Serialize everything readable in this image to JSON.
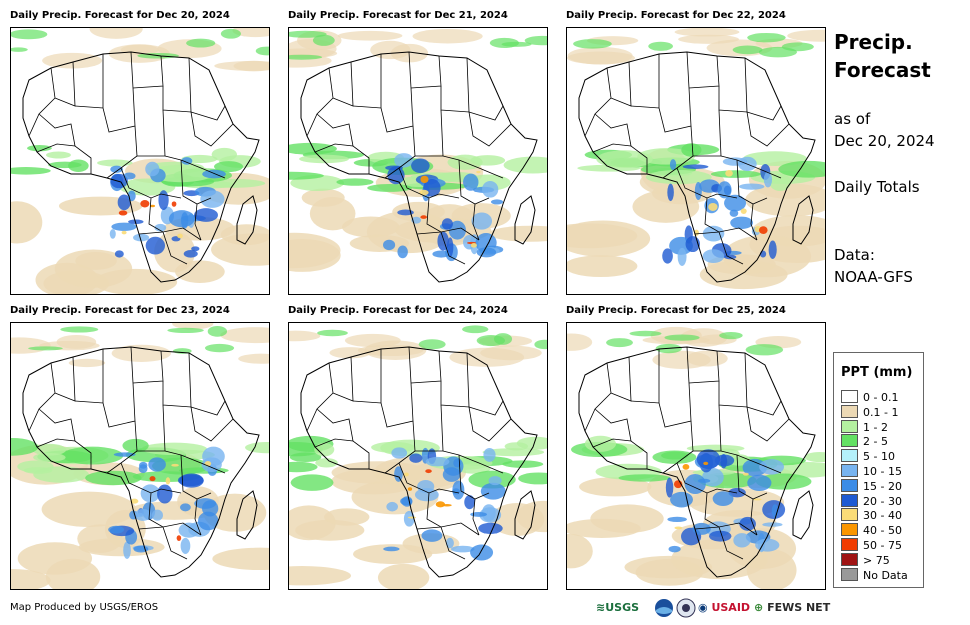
{
  "panels": [
    {
      "title": "Daily Precip. Forecast for Dec 20, 2024"
    },
    {
      "title": "Daily Precip. Forecast for Dec 21, 2024"
    },
    {
      "title": "Daily Precip. Forecast for Dec 22, 2024"
    },
    {
      "title": "Daily Precip. Forecast for Dec 23, 2024"
    },
    {
      "title": "Daily Precip. Forecast for Dec 24, 2024"
    },
    {
      "title": "Daily Precip. Forecast for Dec 25, 2024"
    }
  ],
  "side": {
    "title_line1": "Precip.",
    "title_line2": "Forecast",
    "asof_line1": "as of",
    "asof_line2": "Dec 20, 2024",
    "totals": "Daily Totals",
    "data_label": "Data:",
    "data_source": "NOAA-GFS"
  },
  "legend": {
    "title": "PPT (mm)",
    "items": [
      {
        "label": "0 - 0.1",
        "color": "#ffffff"
      },
      {
        "label": "0.1 - 1",
        "color": "#ecd9b5"
      },
      {
        "label": "1 - 2",
        "color": "#b4f0a0"
      },
      {
        "label": "2 - 5",
        "color": "#64e164"
      },
      {
        "label": "5 - 10",
        "color": "#b4f0fa"
      },
      {
        "label": "10 - 15",
        "color": "#78b4f0"
      },
      {
        "label": "15 - 20",
        "color": "#3c8ce6"
      },
      {
        "label": "20 - 30",
        "color": "#1e5ad2"
      },
      {
        "label": "30 - 40",
        "color": "#fadc78"
      },
      {
        "label": "40 - 50",
        "color": "#fa9600"
      },
      {
        "label": "50 - 75",
        "color": "#f03c00"
      },
      {
        "label": "> 75",
        "color": "#a01414"
      },
      {
        "label": "No Data",
        "color": "#999999"
      }
    ]
  },
  "footer": {
    "credit": "Map Produced by USGS/EROS",
    "logo_usgs": "USGS",
    "logo_usaid": "USAID",
    "logo_fews": "FEWS NET"
  }
}
